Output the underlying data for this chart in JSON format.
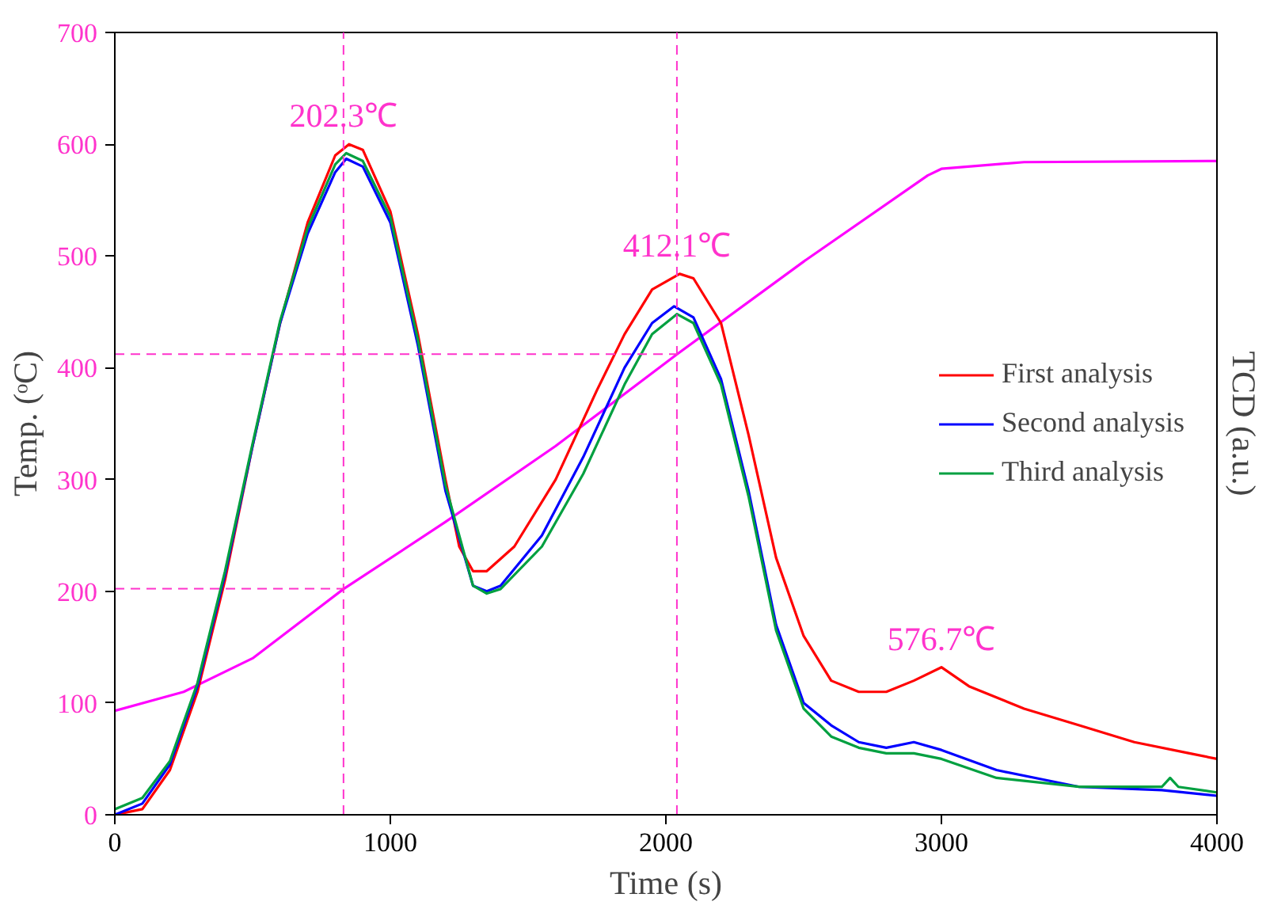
{
  "chart_data": {
    "type": "line",
    "xlabel": "Time (s)",
    "ylabel": "Temp. (ᵒC)",
    "y2label": "TCD (a.u.)",
    "xlim": [
      0,
      4000
    ],
    "xticks": [
      0,
      1000,
      2000,
      3000,
      4000
    ],
    "ylim": [
      0,
      700
    ],
    "yticks": [
      0,
      100,
      200,
      300,
      400,
      500,
      600,
      700
    ],
    "grid": false,
    "legend": "right",
    "line_style": "solid",
    "marker": "none",
    "series": [
      {
        "color": "#ff00ff",
        "x": [
          0,
          250,
          500,
          830,
          1200,
          1600,
          2040,
          2500,
          2950,
          3000,
          3300,
          4000
        ],
        "values": [
          93,
          110,
          140,
          202,
          262,
          330,
          412,
          495,
          572,
          578,
          584,
          585
        ]
      },
      {
        "name": "First analysis",
        "color": "#ff0000",
        "x": [
          0,
          100,
          200,
          300,
          400,
          500,
          600,
          700,
          800,
          850,
          900,
          1000,
          1100,
          1200,
          1250,
          1300,
          1350,
          1450,
          1600,
          1750,
          1850,
          1950,
          2050,
          2100,
          2200,
          2300,
          2400,
          2500,
          2600,
          2700,
          2800,
          2900,
          3000,
          3100,
          3300,
          3500,
          3700,
          3900,
          4000
        ],
        "values": [
          0,
          5,
          40,
          110,
          210,
          330,
          440,
          530,
          590,
          600,
          595,
          540,
          430,
          300,
          240,
          218,
          218,
          240,
          300,
          380,
          430,
          470,
          484,
          480,
          440,
          340,
          230,
          160,
          120,
          110,
          110,
          120,
          132,
          115,
          95,
          80,
          65,
          55,
          50
        ]
      },
      {
        "name": "Second analysis",
        "color": "#0000ff",
        "x": [
          0,
          100,
          200,
          300,
          400,
          500,
          600,
          700,
          800,
          840,
          900,
          1000,
          1100,
          1200,
          1300,
          1350,
          1400,
          1550,
          1700,
          1850,
          1950,
          2030,
          2100,
          2200,
          2300,
          2400,
          2500,
          2600,
          2700,
          2800,
          2900,
          3000,
          3200,
          3500,
          3800,
          4000
        ],
        "values": [
          0,
          10,
          45,
          115,
          215,
          330,
          440,
          520,
          575,
          587,
          580,
          530,
          420,
          290,
          205,
          200,
          205,
          250,
          320,
          400,
          440,
          455,
          445,
          390,
          290,
          170,
          100,
          80,
          65,
          60,
          65,
          58,
          40,
          25,
          22,
          17
        ]
      },
      {
        "name": "Third analysis",
        "color": "#00a040",
        "x": [
          0,
          100,
          200,
          300,
          400,
          500,
          600,
          700,
          800,
          840,
          900,
          1000,
          1100,
          1200,
          1300,
          1350,
          1400,
          1550,
          1700,
          1850,
          1950,
          2040,
          2100,
          2200,
          2300,
          2400,
          2500,
          2600,
          2700,
          2800,
          2900,
          3000,
          3200,
          3500,
          3800,
          3830,
          3860,
          4000
        ],
        "values": [
          5,
          15,
          48,
          118,
          218,
          332,
          442,
          525,
          582,
          592,
          585,
          535,
          425,
          295,
          205,
          198,
          202,
          240,
          305,
          385,
          430,
          448,
          440,
          385,
          285,
          165,
          95,
          70,
          60,
          55,
          55,
          50,
          33,
          25,
          25,
          33,
          25,
          20
        ]
      }
    ],
    "ref_lines": [
      {
        "axis": "x",
        "value": 830,
        "color": "#ff33cc",
        "line_style": "dashed"
      },
      {
        "axis": "x",
        "value": 2040,
        "color": "#ff33cc",
        "line_style": "dashed"
      },
      {
        "axis": "y",
        "value": 202.3,
        "color": "#ff33cc",
        "line_style": "dashed"
      },
      {
        "axis": "y",
        "value": 412.1,
        "color": "#ff33cc",
        "line_style": "dashed"
      }
    ],
    "annotations": [
      {
        "text": "202.3℃",
        "x": 830,
        "y": 600
      },
      {
        "text": "412.1℃",
        "x": 2040,
        "y": 484
      },
      {
        "text": "576.7℃",
        "x": 3000,
        "y": 132
      }
    ]
  }
}
